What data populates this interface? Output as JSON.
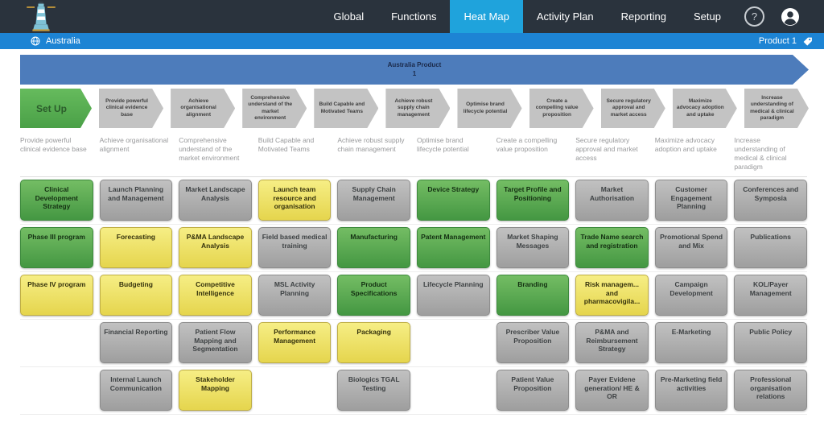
{
  "header": {
    "nav_items": [
      {
        "label": "Global",
        "active": false
      },
      {
        "label": "Functions",
        "active": false
      },
      {
        "label": "Heat Map",
        "active": true
      },
      {
        "label": "Activity Plan",
        "active": false
      },
      {
        "label": "Reporting",
        "active": false
      },
      {
        "label": "Setup",
        "active": false
      }
    ],
    "help_label": "?"
  },
  "toolbar": {
    "country": "Australia",
    "product": "Product 1"
  },
  "banner": {
    "line1": "Australia Product",
    "line2": "1"
  },
  "process_chevrons": [
    {
      "label": "Set Up",
      "color": "green"
    },
    {
      "label": "Provide powerful clinical evidence base",
      "color": "gray"
    },
    {
      "label": "Achieve organisational alignment",
      "color": "gray"
    },
    {
      "label": "Comprehensive understand of the market environment",
      "color": "gray"
    },
    {
      "label": "Build Capable and Motivated Teams",
      "color": "gray"
    },
    {
      "label": "Achieve robust supply chain management",
      "color": "gray"
    },
    {
      "label": "Optimise brand lifecycle potential",
      "color": "gray"
    },
    {
      "label": "Create a compelling value proposition",
      "color": "gray"
    },
    {
      "label": "Secure regulatory approval and market access",
      "color": "gray"
    },
    {
      "label": "Maximize advocacy adoption and uptake",
      "color": "gray"
    },
    {
      "label": "Increase understanding of medical & clinical paradigm",
      "color": "gray"
    }
  ],
  "heatmap": {
    "columns": [
      {
        "header": "Provide powerful clinical evidence base",
        "cards": [
          {
            "label": "Clinical Development Strategy",
            "status": "green"
          },
          {
            "label": "Phase III program",
            "status": "green"
          },
          {
            "label": "Phase IV program",
            "status": "yellow"
          }
        ]
      },
      {
        "header": "Achieve organisational alignment",
        "cards": [
          {
            "label": "Launch Planning and Management",
            "status": "gray"
          },
          {
            "label": "Forecasting",
            "status": "yellow"
          },
          {
            "label": "Budgeting",
            "status": "yellow"
          },
          {
            "label": "Financial Reporting",
            "status": "gray"
          },
          {
            "label": "Internal Launch Communication",
            "status": "gray"
          }
        ]
      },
      {
        "header": "Comprehensive understand of the market environment",
        "cards": [
          {
            "label": "Market Landscape Analysis",
            "status": "gray"
          },
          {
            "label": "P&MA Landscape Analysis",
            "status": "yellow"
          },
          {
            "label": "Competitive Intelligence",
            "status": "yellow"
          },
          {
            "label": "Patient Flow Mapping and Segmentation",
            "status": "gray"
          },
          {
            "label": "Stakeholder Mapping",
            "status": "yellow"
          }
        ]
      },
      {
        "header": "Build Capable and Motivated Teams",
        "cards": [
          {
            "label": "Launch team resource and organisation",
            "status": "yellow"
          },
          {
            "label": "Field based medical training",
            "status": "gray"
          },
          {
            "label": "MSL Activity Planning",
            "status": "gray"
          },
          {
            "label": "Performance Management",
            "status": "yellow"
          }
        ]
      },
      {
        "header": "Achieve robust supply chain management",
        "cards": [
          {
            "label": "Supply Chain Management",
            "status": "gray"
          },
          {
            "label": "Manufacturing",
            "status": "green"
          },
          {
            "label": "Product Specifications",
            "status": "green"
          },
          {
            "label": "Packaging",
            "status": "yellow"
          },
          {
            "label": "Biologics TGAL Testing",
            "status": "gray"
          }
        ]
      },
      {
        "header": "Optimise brand lifecycle potential",
        "cards": [
          {
            "label": "Device Strategy",
            "status": "green"
          },
          {
            "label": "Patent Management",
            "status": "green"
          },
          {
            "label": "Lifecycle Planning",
            "status": "gray"
          }
        ]
      },
      {
        "header": "Create a compelling value proposition",
        "cards": [
          {
            "label": "Target Profile and Positioning",
            "status": "green"
          },
          {
            "label": "Market Shaping Messages",
            "status": "gray"
          },
          {
            "label": "Branding",
            "status": "green"
          },
          {
            "label": "Prescriber Value Proposition",
            "status": "gray"
          },
          {
            "label": "Patient Value Proposition",
            "status": "gray"
          }
        ]
      },
      {
        "header": "Secure regulatory approval and market access",
        "cards": [
          {
            "label": "Market Authorisation",
            "status": "gray"
          },
          {
            "label": "Trade Name search and registration",
            "status": "green"
          },
          {
            "label": "Risk managem... and pharmacovigila...",
            "status": "yellow"
          },
          {
            "label": "P&MA and Reimbursement Strategy",
            "status": "gray"
          },
          {
            "label": "Payer Evidene generation/ HE & OR",
            "status": "gray"
          }
        ]
      },
      {
        "header": "Maximize advocacy adoption and uptake",
        "cards": [
          {
            "label": "Customer Engagement Planning",
            "status": "gray"
          },
          {
            "label": "Promotional Spend and Mix",
            "status": "gray"
          },
          {
            "label": "Campaign Development",
            "status": "gray"
          },
          {
            "label": "E-Marketing",
            "status": "gray"
          },
          {
            "label": "Pre-Marketing field activities",
            "status": "gray"
          }
        ]
      },
      {
        "header": "Increase understanding of medical & clinical paradigm",
        "cards": [
          {
            "label": "Conferences and Symposia",
            "status": "gray"
          },
          {
            "label": "Publications",
            "status": "gray"
          },
          {
            "label": "KOL/Payer Management",
            "status": "gray"
          },
          {
            "label": "Public Policy",
            "status": "gray"
          },
          {
            "label": "Professional organisation relations",
            "status": "gray"
          }
        ]
      }
    ]
  },
  "colors": {
    "nav_dark": "#2a333d",
    "accent_tab": "#1fa3dc",
    "bar_blue": "#1d84d4",
    "banner_blue": "#4d7cbb",
    "status_green": "#55a94c",
    "status_yellow": "#eddf5e",
    "status_gray": "#b2b2b2"
  }
}
